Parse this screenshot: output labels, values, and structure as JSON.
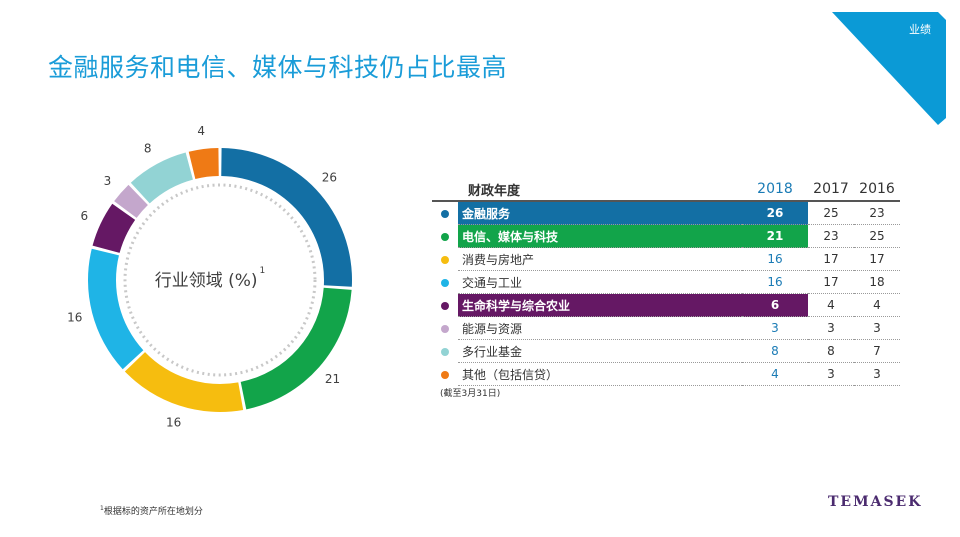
{
  "header": {
    "title": "金融服务和电信、媒体与科技仍占比最高",
    "corner_tag": "业绩",
    "corner_color": "#0b9ad6"
  },
  "donut": {
    "center_label": "行业领域 (%)",
    "center_sup": "1",
    "segments": [
      {
        "label": "26",
        "value": 26,
        "color": "#136fa4"
      },
      {
        "label": "21",
        "value": 21,
        "color": "#12a44a"
      },
      {
        "label": "16",
        "value": 16,
        "color": "#f6bd0f"
      },
      {
        "label": "16",
        "value": 16,
        "color": "#1fb4e6"
      },
      {
        "label": "6",
        "value": 6,
        "color": "#651864"
      },
      {
        "label": "3",
        "value": 3,
        "color": "#c4a7cc"
      },
      {
        "label": "8",
        "value": 8,
        "color": "#92d3d4"
      },
      {
        "label": "4",
        "value": 4,
        "color": "#ef7a15"
      }
    ]
  },
  "table": {
    "header_label": "财政年度",
    "years": [
      "2018",
      "2017",
      "2016"
    ],
    "rows": [
      {
        "name": "金融服务",
        "color": "#136fa4",
        "v2018": "26",
        "v2017": "25",
        "v2016": "23",
        "highlight": true
      },
      {
        "name": "电信、媒体与科技",
        "color": "#12a44a",
        "v2018": "21",
        "v2017": "23",
        "v2016": "25",
        "highlight": true
      },
      {
        "name": "消费与房地产",
        "color": "#f6bd0f",
        "v2018": "16",
        "v2017": "17",
        "v2016": "17",
        "highlight": false
      },
      {
        "name": "交通与工业",
        "color": "#1fb4e6",
        "v2018": "16",
        "v2017": "17",
        "v2016": "18",
        "highlight": false
      },
      {
        "name": "生命科学与综合农业",
        "color": "#651864",
        "v2018": "6",
        "v2017": "4",
        "v2016": "4",
        "highlight": true
      },
      {
        "name": "能源与资源",
        "color": "#c4a7cc",
        "v2018": "3",
        "v2017": "3",
        "v2016": "3",
        "highlight": false
      },
      {
        "name": "多行业基金",
        "color": "#92d3d4",
        "v2018": "8",
        "v2017": "8",
        "v2016": "7",
        "highlight": false
      },
      {
        "name": "其他（包括信贷）",
        "color": "#ef7a15",
        "v2018": "4",
        "v2017": "3",
        "v2016": "3",
        "highlight": false
      }
    ],
    "note": "(截至3月31日)"
  },
  "footer": {
    "footnote_sup": "1",
    "footnote": "根据标的资产所在地划分",
    "logo": "TEMASEK"
  }
}
